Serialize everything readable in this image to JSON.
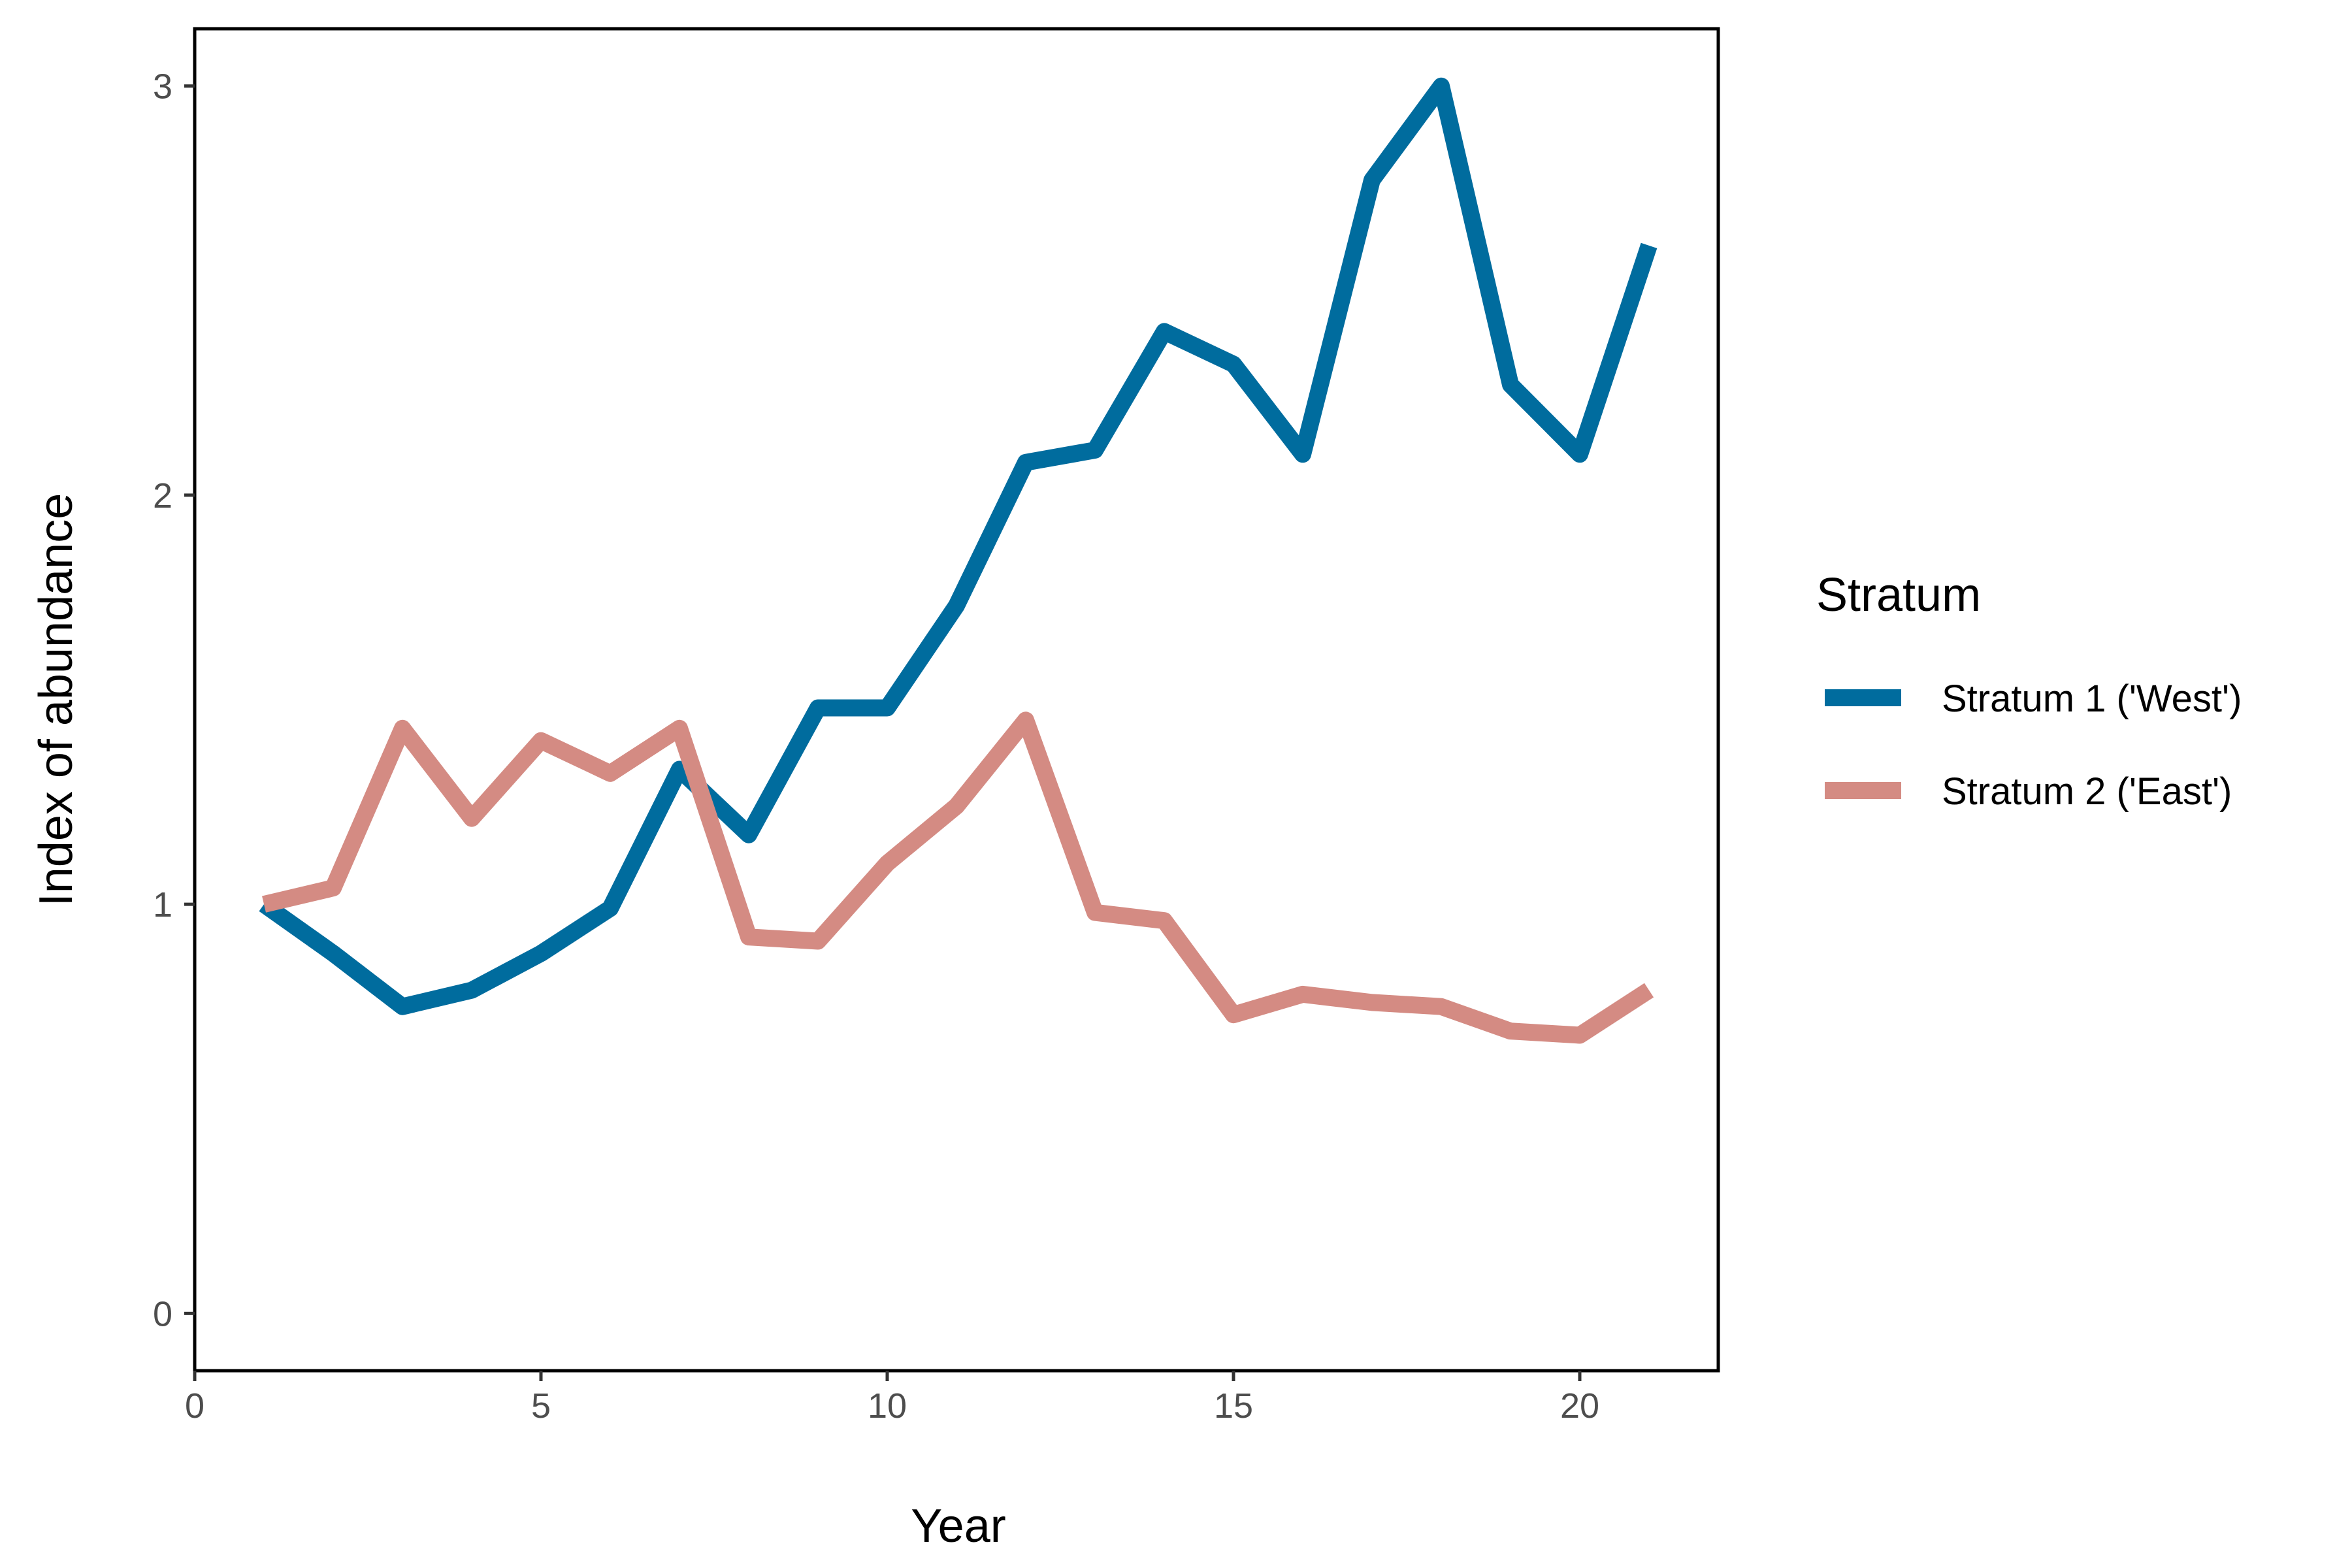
{
  "chart_data": {
    "type": "line",
    "xlabel": "Year",
    "ylabel": "Index of abundance",
    "xlim": [
      0,
      22
    ],
    "ylim": [
      -0.14,
      3.14
    ],
    "xticks": [
      0,
      5,
      10,
      15,
      20
    ],
    "yticks": [
      0,
      1,
      2,
      3
    ],
    "grid": false,
    "legend": {
      "title": "Stratum",
      "placement": "right"
    },
    "x": [
      1,
      2,
      3,
      4,
      5,
      6,
      7,
      8,
      9,
      10,
      11,
      12,
      13,
      14,
      15,
      16,
      17,
      18,
      19,
      20,
      21
    ],
    "series": [
      {
        "name": "Stratum 1 ('West')",
        "color": "#006c9e",
        "values": [
          1.0,
          0.88,
          0.75,
          0.79,
          0.88,
          0.99,
          1.33,
          1.17,
          1.48,
          1.48,
          1.73,
          2.08,
          2.11,
          2.4,
          2.32,
          2.1,
          2.77,
          3.0,
          2.27,
          2.1,
          2.61
        ]
      },
      {
        "name": "Stratum 2 ('East')",
        "color": "#d48b83",
        "values": [
          1.0,
          1.04,
          1.43,
          1.21,
          1.4,
          1.32,
          1.43,
          0.92,
          0.91,
          1.1,
          1.24,
          1.45,
          0.98,
          0.96,
          0.73,
          0.78,
          0.76,
          0.75,
          0.69,
          0.68,
          0.79
        ]
      }
    ]
  }
}
